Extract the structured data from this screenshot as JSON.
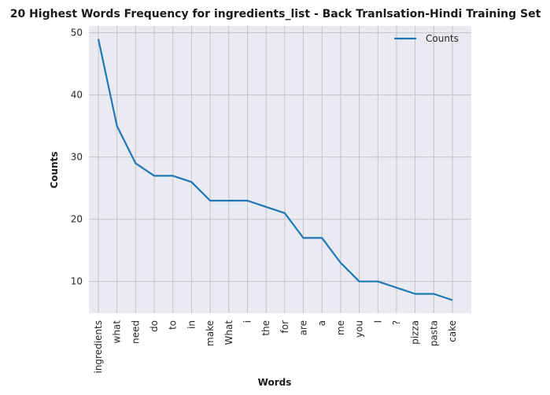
{
  "chart_data": {
    "type": "line",
    "title": "20 Highest Words Frequency for ingredients_list - Back Tranlsation-Hindi Training Set",
    "xlabel": "Words",
    "ylabel": "Counts",
    "categories": [
      "ingredients",
      "what",
      "need",
      "do",
      "to",
      "in",
      "make",
      "What",
      "i",
      "the",
      "for",
      "are",
      "a",
      "me",
      "you",
      "I",
      "?",
      "pizza",
      "pasta",
      "cake"
    ],
    "series": [
      {
        "name": "Counts",
        "values": [
          49,
          35,
          29,
          27,
          27,
          26,
          23,
          23,
          23,
          22,
          21,
          17,
          17,
          13,
          10,
          10,
          9,
          8,
          8,
          7
        ],
        "color": "#1f77b4"
      }
    ],
    "yticks": [
      10,
      20,
      30,
      40,
      50
    ],
    "ylim": [
      4.9,
      51.1
    ],
    "grid": true,
    "legend": "top-right",
    "background": "#eaeaf2",
    "grid_color": "#c0c0c0"
  }
}
